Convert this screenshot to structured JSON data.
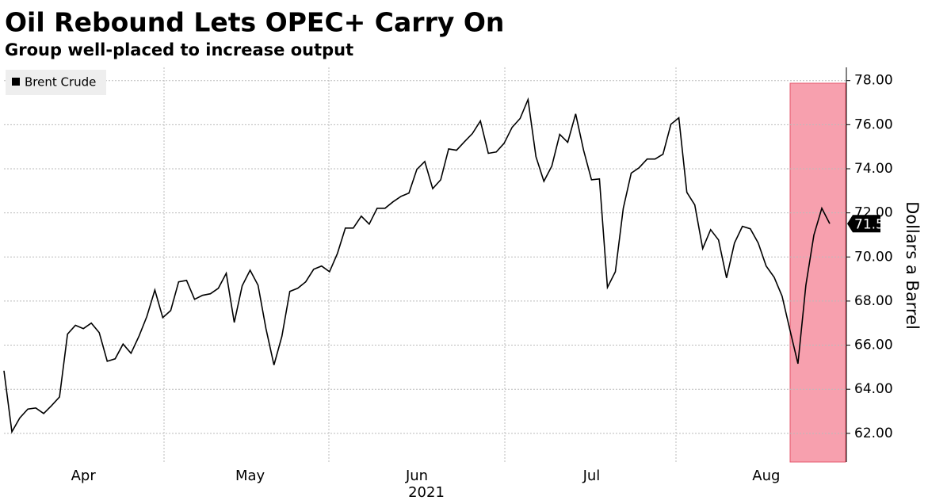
{
  "chart_data": {
    "type": "line",
    "title": "Oil Rebound Lets OPEC+ Carry On",
    "subtitle": "Group well-placed to increase output",
    "ylabel": "Dollars a Barrel",
    "xlabel": "2021",
    "categories": [
      null,
      null,
      null,
      null,
      null,
      null,
      null,
      null,
      null,
      null,
      "Apr",
      null,
      null,
      null,
      null,
      null,
      null,
      null,
      null,
      null,
      null,
      null,
      null,
      null,
      null,
      null,
      null,
      null,
      null,
      null,
      null,
      "May",
      null,
      null,
      null,
      null,
      null,
      null,
      null,
      null,
      null,
      null,
      null,
      null,
      null,
      null,
      null,
      null,
      null,
      null,
      null,
      null,
      "Jun",
      null,
      null,
      null,
      null,
      null,
      null,
      null,
      null,
      null,
      null,
      null,
      null,
      null,
      null,
      null,
      null,
      null,
      null,
      null,
      null,
      null,
      "Jul",
      null,
      null,
      null,
      null,
      null,
      null,
      null,
      null,
      null,
      null,
      null,
      null,
      null,
      null,
      null,
      null,
      null,
      null,
      null,
      null,
      null,
      "Aug",
      null,
      null,
      null,
      null,
      null,
      null,
      null,
      null
    ],
    "series": [
      {
        "name": "Brent Crude",
        "color": "#000000",
        "values": [
          64.84,
          62.07,
          62.7,
          63.1,
          63.15,
          62.9,
          63.26,
          63.65,
          66.5,
          66.9,
          66.75,
          67.0,
          66.57,
          65.27,
          65.38,
          66.05,
          65.63,
          66.4,
          67.3,
          68.5,
          67.25,
          67.57,
          68.87,
          68.94,
          68.08,
          68.26,
          68.33,
          68.58,
          69.26,
          67.03,
          68.69,
          69.4,
          68.72,
          66.75,
          65.1,
          66.4,
          68.44,
          68.58,
          68.87,
          69.44,
          69.59,
          69.33,
          70.16,
          71.31,
          71.31,
          71.85,
          71.49,
          72.21,
          72.21,
          72.5,
          72.75,
          72.9,
          73.97,
          74.33,
          73.1,
          73.5,
          74.9,
          74.84,
          75.23,
          75.6,
          76.17,
          74.7,
          74.76,
          75.16,
          75.88,
          76.28,
          77.14,
          74.55,
          73.43,
          74.12,
          75.56,
          75.2,
          76.49,
          74.84,
          73.5,
          73.54,
          68.62,
          69.33,
          72.21,
          73.8,
          74.05,
          74.44,
          74.44,
          74.66,
          76.02,
          76.31,
          72.93,
          72.36,
          70.38,
          71.24,
          70.77,
          69.05,
          70.63,
          71.39,
          71.28,
          70.63,
          69.59,
          69.08,
          68.22,
          66.67,
          65.16,
          68.72,
          70.99,
          72.21,
          71.51
        ]
      }
    ],
    "ylim": [
      60.7,
      78.6
    ],
    "yticks": [
      {
        "value": 62,
        "label": "62.00"
      },
      {
        "value": 64,
        "label": "64.00"
      },
      {
        "value": 66,
        "label": "66.00"
      },
      {
        "value": 68,
        "label": "68.00"
      },
      {
        "value": 70,
        "label": "70.00"
      },
      {
        "value": 72,
        "label": "72.00"
      },
      {
        "value": 74,
        "label": "74.00"
      },
      {
        "value": 76,
        "label": "76.00"
      },
      {
        "value": 78,
        "label": "78.00"
      }
    ],
    "grid": true
  }
}
